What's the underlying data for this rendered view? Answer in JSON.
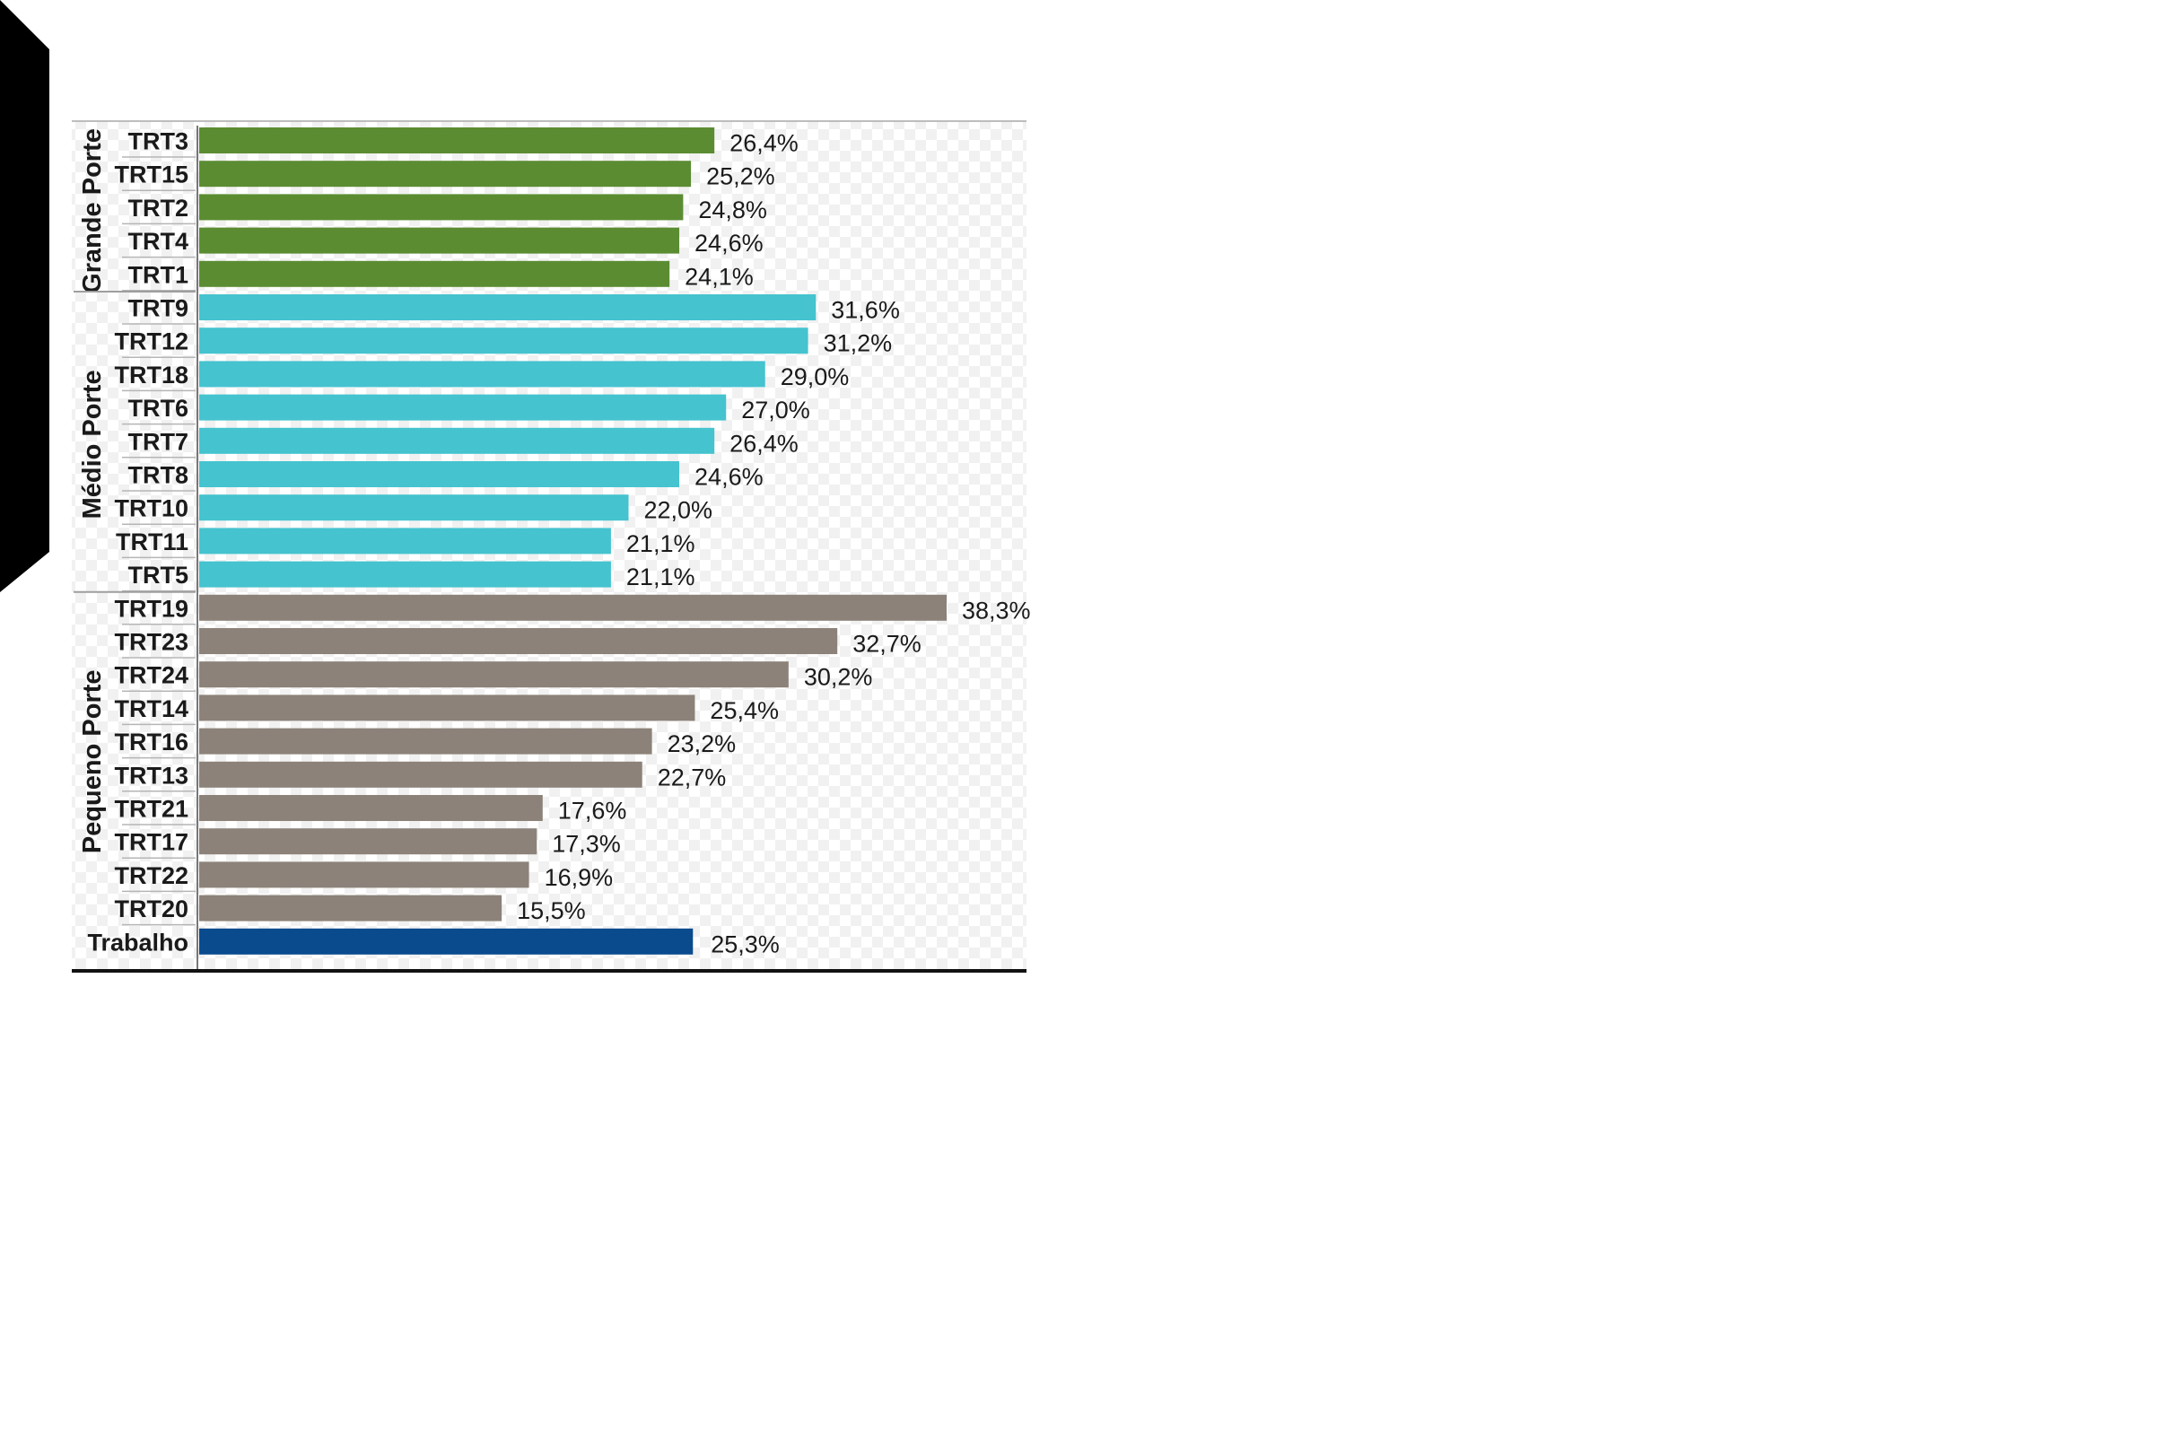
{
  "colors": {
    "Grande Porte": "#5b8c32",
    "Médio Porte": "#45c3cf",
    "Pequeno Porte": "#8c8279",
    "Total": "#0a4b8e",
    "side_tab": "#000000",
    "text": "#1a1a1a"
  },
  "chart_data": {
    "type": "bar",
    "orientation": "horizontal",
    "title": "",
    "xlabel": "",
    "ylabel": "",
    "xlim": [
      0,
      38.3
    ],
    "grid": false,
    "value_format": "percent with comma decimal",
    "groups": [
      {
        "name": "Grande Porte",
        "color": "#5b8c32",
        "categories": [
          "TRT3",
          "TRT15",
          "TRT2",
          "TRT4",
          "TRT1"
        ],
        "values": [
          26.4,
          25.2,
          24.8,
          24.6,
          24.1
        ],
        "labels": [
          "26,4%",
          "25,2%",
          "24,8%",
          "24,6%",
          "24,1%"
        ]
      },
      {
        "name": "Médio Porte",
        "color": "#45c3cf",
        "categories": [
          "TRT9",
          "TRT12",
          "TRT18",
          "TRT6",
          "TRT7",
          "TRT8",
          "TRT10",
          "TRT11",
          "TRT5"
        ],
        "values": [
          31.6,
          31.2,
          29.0,
          27.0,
          26.4,
          24.6,
          22.0,
          21.1,
          21.1
        ],
        "labels": [
          "31,6%",
          "31,2%",
          "29,0%",
          "27,0%",
          "26,4%",
          "24,6%",
          "22,0%",
          "21,1%",
          "21,1%"
        ]
      },
      {
        "name": "Pequeno Porte",
        "color": "#8c8279",
        "categories": [
          "TRT19",
          "TRT23",
          "TRT24",
          "TRT14",
          "TRT16",
          "TRT13",
          "TRT21",
          "TRT17",
          "TRT22",
          "TRT20"
        ],
        "values": [
          38.3,
          32.7,
          30.2,
          25.4,
          23.2,
          22.7,
          17.6,
          17.3,
          16.9,
          15.5
        ],
        "labels": [
          "38,3%",
          "32,7%",
          "30,2%",
          "25,4%",
          "23,2%",
          "22,7%",
          "17,6%",
          "17,3%",
          "16,9%",
          "15,5%"
        ]
      }
    ],
    "total": {
      "category": "Trabalho",
      "value": 25.3,
      "label": "25,3%",
      "color": "#0a4b8e"
    }
  }
}
